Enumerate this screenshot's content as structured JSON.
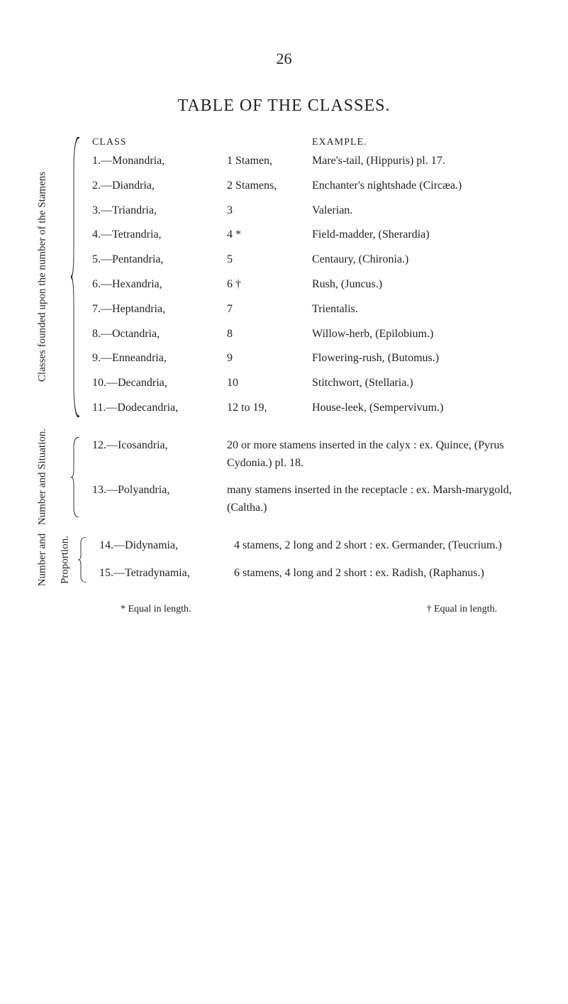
{
  "page_number": "26",
  "title": "TABLE OF THE CLASSES.",
  "group1": {
    "vlabel": "Classes founded upon the number of the Stamens",
    "head_left": "CLASS",
    "head_right": "EXAMPLE.",
    "rows": [
      {
        "cls": "1.—Monandria,",
        "stamens": "1 Stamen,",
        "example": "Mare's-tail, (Hippuris) pl. 17."
      },
      {
        "cls": "2.—Diandria,",
        "stamens": "2 Stamens,",
        "example": "Enchanter's nightshade (Circæa.)"
      },
      {
        "cls": "3.—Triandria,",
        "stamens": "3",
        "example": "Valerian."
      },
      {
        "cls": "4.—Tetrandria,",
        "stamens": "4 *",
        "example": "Field-madder, (Sherardia)"
      },
      {
        "cls": "5.—Pentandria,",
        "stamens": "5",
        "example": "Centaury, (Chironia.)"
      },
      {
        "cls": "6.—Hexandria,",
        "stamens": "6 †",
        "example": "Rush, (Juncus.)"
      },
      {
        "cls": "7.—Heptandria,",
        "stamens": "7",
        "example": "Trientalis."
      },
      {
        "cls": "8.—Octandria,",
        "stamens": "8",
        "example": "Willow-herb, (Epilobium.)"
      },
      {
        "cls": "9.—Enneandria,",
        "stamens": "9",
        "example": "Flowering-rush, (Butomus.)"
      },
      {
        "cls": "10.—Decandria,",
        "stamens": "10",
        "example": "Stitchwort, (Stellaria.)"
      },
      {
        "cls": "11.—Dodecandria,",
        "stamens": "12 to 19,",
        "example": "House-leek, (Sempervivum.)"
      }
    ]
  },
  "group2": {
    "vlabel": "Number and Situation.",
    "rows": [
      {
        "cls": "12.—Icosandria,",
        "desc": "20 or more stamens inserted in the calyx : ex. Quince, (Pyrus Cydonia.)           pl. 18."
      },
      {
        "cls": "13.—Polyandria,",
        "desc": "many stamens inserted in the receptacle : ex. Marsh-marygold, (Caltha.)"
      }
    ]
  },
  "group3": {
    "vlabel1": "Number and",
    "vlabel2": "Proportion.",
    "rows": [
      {
        "cls": "14.—Didynamia,",
        "desc": "4 stamens, 2 long and 2 short : ex. Germander, (Teucrium.)"
      },
      {
        "cls": "15.—Tetradynamia,",
        "desc": "6 stamens, 4 long and 2 short : ex. Radish, (Raphanus.)"
      }
    ]
  },
  "footnote_left": "* Equal in length.",
  "footnote_right": "† Equal in length."
}
